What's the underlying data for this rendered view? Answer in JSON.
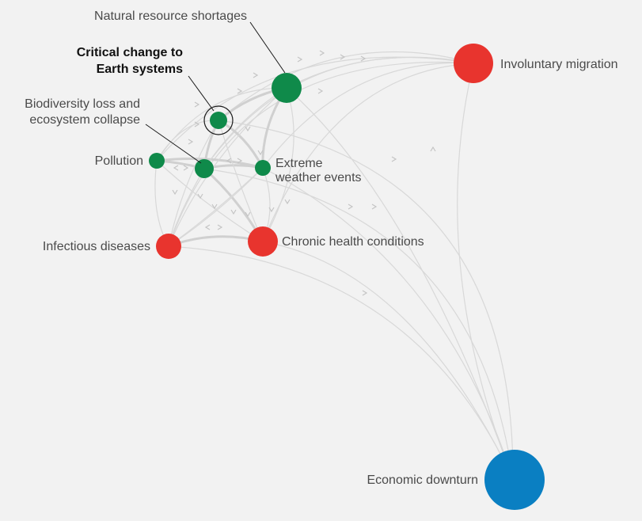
{
  "colors": {
    "environmental": "#0f8a4a",
    "societal": "#e8342e",
    "economic": "#0a7fc2",
    "edge": "#d8d8d8",
    "background": "#f2f2f2"
  },
  "nodes": {
    "natural_resource_shortages": {
      "label": "Natural resource shortages",
      "category": "environmental"
    },
    "critical_change": {
      "label_line1": "Critical change to",
      "label_line2": "Earth systems",
      "category": "environmental",
      "highlighted": true
    },
    "biodiversity_loss": {
      "label_line1": "Biodiversity loss and",
      "label_line2": "ecosystem collapse",
      "category": "environmental"
    },
    "pollution": {
      "label": "Pollution",
      "category": "environmental"
    },
    "extreme_weather": {
      "label_line1": "Extreme",
      "label_line2": "weather events",
      "category": "environmental"
    },
    "infectious_diseases": {
      "label": "Infectious diseases",
      "category": "societal"
    },
    "chronic_health": {
      "label": "Chronic health conditions",
      "category": "societal"
    },
    "involuntary_migration": {
      "label": "Involuntary migration",
      "category": "societal"
    },
    "economic_downturn": {
      "label": "Economic downturn",
      "category": "economic"
    }
  }
}
